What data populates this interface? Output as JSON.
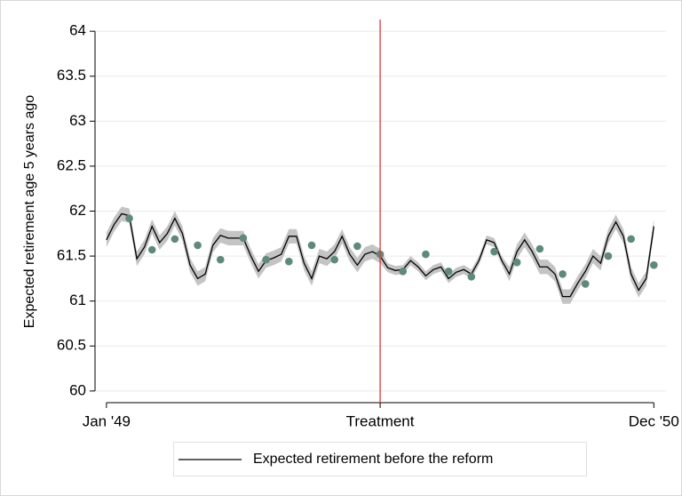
{
  "chart_data": {
    "type": "line",
    "y_label": "Expected retirement age 5 years ago",
    "xlim": [
      -1.5,
      73.6
    ],
    "ylim": [
      59.87,
      64.13
    ],
    "xticks": [
      {
        "value": 0,
        "label": "Jan '49"
      },
      {
        "value": 36,
        "label": "Treatment"
      },
      {
        "value": 72,
        "label": "Dec '50"
      }
    ],
    "yticks": [
      60,
      60.5,
      61,
      61.5,
      62,
      62.5,
      63,
      63.5,
      64
    ],
    "grid": true,
    "vline": {
      "x": 36,
      "color": "#d9383a"
    },
    "legend": "bottom",
    "series": [
      {
        "name": "Expected retirement before the reform",
        "type": "line",
        "color": "#000000",
        "band_color": "#c4c4c4",
        "x": [
          0,
          1,
          2,
          3,
          4,
          5,
          6,
          7,
          8,
          9,
          10,
          11,
          12,
          13,
          14,
          15,
          16,
          17,
          18,
          19,
          20,
          21,
          22,
          23,
          24,
          25,
          26,
          27,
          28,
          29,
          30,
          31,
          32,
          33,
          34,
          35,
          36,
          37,
          38,
          39,
          40,
          41,
          42,
          43,
          44,
          45,
          46,
          47,
          48,
          49,
          50,
          51,
          52,
          53,
          54,
          55,
          56,
          57,
          58,
          59,
          60,
          61,
          62,
          63,
          64,
          65,
          66,
          67,
          68,
          69,
          70,
          71,
          72
        ],
        "values": [
          61.68,
          61.85,
          61.97,
          61.95,
          61.47,
          61.6,
          61.83,
          61.65,
          61.75,
          61.92,
          61.75,
          61.4,
          61.25,
          61.3,
          61.62,
          61.73,
          61.7,
          61.7,
          61.7,
          61.5,
          61.33,
          61.45,
          61.48,
          61.52,
          61.72,
          61.72,
          61.42,
          61.25,
          61.5,
          61.47,
          61.55,
          61.72,
          61.52,
          61.4,
          61.52,
          61.55,
          61.5,
          61.37,
          61.34,
          61.35,
          61.45,
          61.38,
          61.28,
          61.35,
          61.38,
          61.25,
          61.32,
          61.35,
          61.3,
          61.45,
          61.68,
          61.65,
          61.45,
          61.3,
          61.55,
          61.68,
          61.55,
          61.38,
          61.38,
          61.3,
          61.05,
          61.05,
          61.2,
          61.33,
          61.5,
          61.42,
          61.72,
          61.88,
          61.72,
          61.3,
          61.12,
          61.25,
          61.83
        ],
        "ci_upper": [
          61.76,
          61.93,
          62.05,
          62.03,
          61.55,
          61.68,
          61.91,
          61.73,
          61.83,
          62.0,
          61.83,
          61.48,
          61.33,
          61.38,
          61.7,
          61.81,
          61.78,
          61.78,
          61.78,
          61.58,
          61.41,
          61.53,
          61.56,
          61.6,
          61.8,
          61.8,
          61.5,
          61.33,
          61.58,
          61.55,
          61.63,
          61.8,
          61.6,
          61.48,
          61.6,
          61.63,
          61.58,
          61.42,
          61.39,
          61.4,
          61.5,
          61.43,
          61.33,
          61.4,
          61.43,
          61.3,
          61.37,
          61.4,
          61.35,
          61.5,
          61.73,
          61.7,
          61.5,
          61.38,
          61.63,
          61.76,
          61.63,
          61.46,
          61.46,
          61.38,
          61.13,
          61.13,
          61.28,
          61.41,
          61.58,
          61.5,
          61.8,
          61.96,
          61.8,
          61.38,
          61.2,
          61.33,
          61.91
        ],
        "ci_lower": [
          61.6,
          61.77,
          61.89,
          61.87,
          61.39,
          61.52,
          61.75,
          61.57,
          61.67,
          61.84,
          61.67,
          61.32,
          61.17,
          61.22,
          61.54,
          61.65,
          61.62,
          61.62,
          61.62,
          61.42,
          61.25,
          61.37,
          61.4,
          61.44,
          61.64,
          61.64,
          61.34,
          61.17,
          61.42,
          61.39,
          61.47,
          61.64,
          61.44,
          61.32,
          61.44,
          61.47,
          61.42,
          61.32,
          61.29,
          61.3,
          61.4,
          61.33,
          61.23,
          61.3,
          61.33,
          61.2,
          61.27,
          61.3,
          61.25,
          61.4,
          61.63,
          61.6,
          61.4,
          61.22,
          61.47,
          61.6,
          61.47,
          61.3,
          61.3,
          61.22,
          60.97,
          60.97,
          61.12,
          61.25,
          61.42,
          61.34,
          61.64,
          61.8,
          61.64,
          61.22,
          61.04,
          61.17,
          61.75
        ]
      },
      {
        "type": "scatter",
        "color": "#5e8a7e",
        "x": [
          3,
          6,
          9,
          12,
          15,
          18,
          21,
          24,
          27,
          30,
          33,
          36,
          39,
          42,
          45,
          48,
          51,
          54,
          57,
          60,
          63,
          66,
          69,
          72
        ],
        "values": [
          61.92,
          61.57,
          61.69,
          61.62,
          61.46,
          61.7,
          61.46,
          61.44,
          61.62,
          61.46,
          61.61,
          61.52,
          61.33,
          61.52,
          61.33,
          61.27,
          61.55,
          61.43,
          61.58,
          61.3,
          61.19,
          61.5,
          61.69,
          61.4
        ]
      }
    ]
  }
}
